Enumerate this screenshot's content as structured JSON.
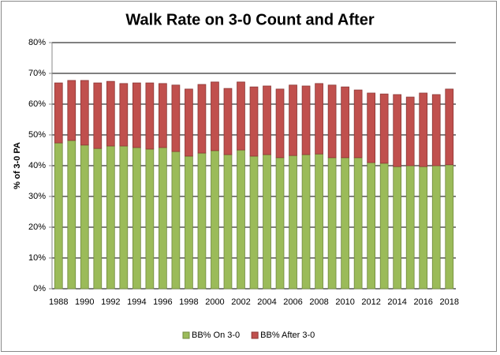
{
  "chart_data": {
    "type": "stacked-bar",
    "title": "Walk Rate on 3-0 Count and After",
    "y_label": "% of 3-0 PA",
    "categories": [
      "1988",
      null,
      "1990",
      null,
      "1992",
      null,
      "1994",
      null,
      "1996",
      null,
      "1998",
      null,
      "2000",
      null,
      "2002",
      null,
      "2004",
      null,
      "2006",
      null,
      "2008",
      null,
      "2010",
      null,
      "2012",
      null,
      "2014",
      null,
      "2016",
      null,
      "2018"
    ],
    "series": [
      {
        "name": "BB% On 3-0",
        "color": "#9bbb59",
        "values": [
          47.4,
          48.2,
          46.7,
          45.6,
          46.4,
          46.4,
          45.9,
          45.4,
          45.9,
          44.6,
          43.1,
          44.1,
          44.9,
          43.6,
          45.1,
          43.1,
          43.6,
          42.6,
          43.3,
          43.6,
          43.8,
          42.6,
          42.6,
          42.6,
          41.0,
          40.8,
          39.7,
          40.0,
          39.7,
          40.0,
          40.3
        ]
      },
      {
        "name": "BB% After 3-0",
        "color": "#c0504d",
        "values": [
          19.5,
          19.5,
          21.0,
          21.3,
          21.0,
          20.3,
          21.0,
          21.5,
          20.8,
          21.6,
          21.8,
          22.3,
          22.3,
          21.5,
          22.1,
          22.5,
          22.3,
          22.3,
          22.9,
          22.3,
          22.9,
          23.6,
          23.0,
          22.0,
          22.6,
          22.5,
          23.4,
          22.3,
          23.9,
          23.1,
          24.6
        ]
      }
    ],
    "ylim": [
      0,
      80
    ],
    "yticks": [
      {
        "value": 0,
        "label": "0%"
      },
      {
        "value": 10,
        "label": "10%"
      },
      {
        "value": 20,
        "label": "20%"
      },
      {
        "value": 30,
        "label": "30%"
      },
      {
        "value": 40,
        "label": "40%"
      },
      {
        "value": 50,
        "label": "50%"
      },
      {
        "value": 60,
        "label": "60%"
      },
      {
        "value": 70,
        "label": "70%"
      },
      {
        "value": 80,
        "label": "80%"
      }
    ],
    "grid": true,
    "legend": "bottom"
  }
}
